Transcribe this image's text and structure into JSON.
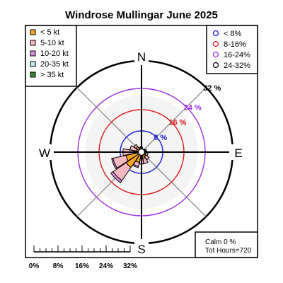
{
  "chart_data": {
    "type": "windrose",
    "title": "Windrose  Mullingar June 2025",
    "compass": {
      "n": "N",
      "e": "E",
      "s": "S",
      "w": "W"
    },
    "rings": [
      {
        "value": 8,
        "label": "8 %",
        "color": "#1c1cd6"
      },
      {
        "value": 16,
        "label": "16 %",
        "color": "#d61c1c"
      },
      {
        "value": 24,
        "label": "24 %",
        "color": "#9b30e0"
      },
      {
        "value": 32,
        "label": "32 %",
        "color": "#000000"
      }
    ],
    "speed_bins": [
      {
        "label": "< 5  kt",
        "color": "#f5a623"
      },
      {
        "label": "5-10 kt",
        "color": "#f8b8c2"
      },
      {
        "label": "10-20 kt",
        "color": "#d68cd6"
      },
      {
        "label": "20-35 kt",
        "color": "#bfe8ea"
      },
      {
        "label": "> 35 kt",
        "color": "#2e8b2e"
      }
    ],
    "ring_legend": [
      {
        "label": "< 8%",
        "color": "#1c1cd6"
      },
      {
        "label": "8-16%",
        "color": "#d61c1c"
      },
      {
        "label": "16-24%",
        "color": "#9b30e0"
      },
      {
        "label": "24-32%",
        "color": "#000000"
      }
    ],
    "directions_deg": [
      0,
      22.5,
      45,
      67.5,
      90,
      112.5,
      135,
      157.5,
      180,
      202.5,
      225,
      247.5,
      270,
      292.5,
      315,
      337.5
    ],
    "series": [
      {
        "name": "< 5  kt",
        "values": [
          1.5,
          1.0,
          1.5,
          1.5,
          1.5,
          1.5,
          2.0,
          2.5,
          2.5,
          4.0,
          7.0,
          6.0,
          3.0,
          2.0,
          2.5,
          1.5
        ]
      },
      {
        "name": "5-10 kt",
        "values": [
          0.5,
          0.0,
          0.0,
          0.5,
          0.5,
          1.0,
          1.5,
          2.0,
          2.0,
          1.5,
          6.0,
          5.0,
          4.0,
          2.5,
          1.0,
          0.5
        ]
      },
      {
        "name": "10-20 kt",
        "values": [
          0.0,
          0.0,
          0.0,
          0.0,
          0.0,
          0.0,
          0.0,
          0.0,
          0.0,
          0.5,
          1.0,
          0.5,
          0.0,
          0.0,
          0.0,
          0.0
        ]
      },
      {
        "name": "20-35 kt",
        "values": [
          0,
          0,
          0,
          0,
          0,
          0,
          0,
          0,
          0,
          0,
          0,
          0,
          0,
          0,
          0,
          0
        ]
      },
      {
        "name": "> 35 kt",
        "values": [
          0,
          0,
          0,
          0,
          0,
          0,
          0,
          0,
          0,
          0,
          0,
          0,
          0,
          0,
          0,
          0
        ]
      }
    ],
    "calm_label": "Calm 0 %",
    "hours_label": "Tot Hours=720",
    "scale_labels": [
      "0%",
      "8%",
      "16%",
      "24%",
      "32%"
    ],
    "rmax": 32
  }
}
